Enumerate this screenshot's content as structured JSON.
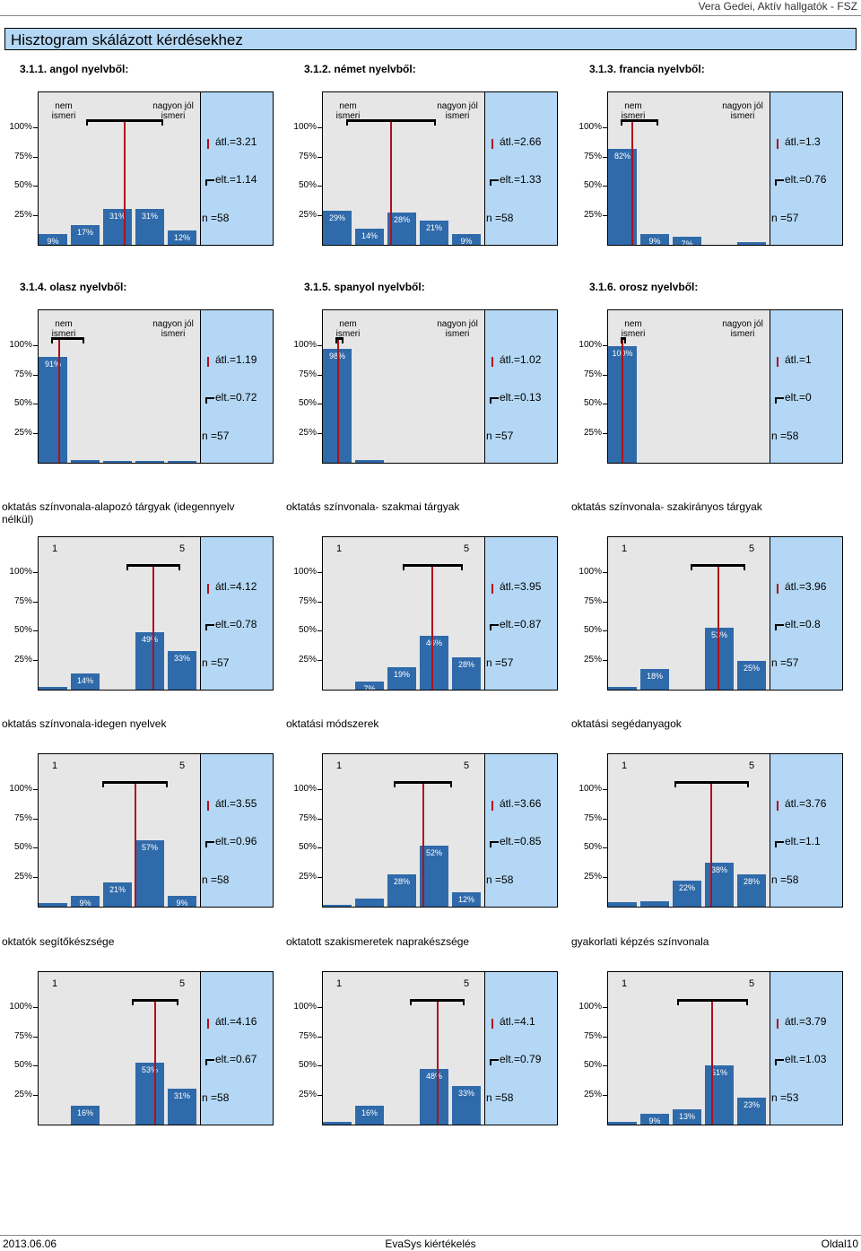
{
  "header": {
    "right": "Vera Gedei, Aktív hallgatók - FSZ"
  },
  "page_title": "Hisztogram skálázott kérdésekhez",
  "footer": {
    "date": "2013.06.06",
    "center": "EvaSys kiértékelés",
    "page": "Oldal10"
  },
  "y_ticks": [
    "100%",
    "75%",
    "50%",
    "25%"
  ],
  "labels": {
    "avg": "átl.=",
    "dev": "elt.=",
    "n": "n ="
  },
  "chart_data": [
    {
      "title": "3.1.1. angol nyelvből:",
      "bold": true,
      "left_label": "nem ismeri",
      "right_label": "nagyon jól ismeri",
      "type": "bar",
      "values": [
        9,
        17,
        31,
        31,
        12
      ],
      "labels": [
        "9%",
        "17%",
        "31%",
        "31%",
        "12%"
      ],
      "mean": 3.21,
      "dev": 1.14,
      "n": 58,
      "avg_text": "3.21",
      "dev_text": "1.14",
      "n_text": "58"
    },
    {
      "title": "3.1.2. német nyelvből:",
      "bold": true,
      "left_label": "nem ismeri",
      "right_label": "nagyon jól ismeri",
      "type": "bar",
      "values": [
        29,
        14,
        28,
        21,
        9
      ],
      "labels": [
        "29%",
        "14%",
        "28%",
        "21%",
        "9%"
      ],
      "mean": 2.66,
      "dev": 1.33,
      "n": 58,
      "avg_text": "2.66",
      "dev_text": "1.33",
      "n_text": "58"
    },
    {
      "title": "3.1.3. francia nyelvből:",
      "bold": true,
      "left_label": "nem ismeri",
      "right_label": "nagyon jól ismeri",
      "type": "bar",
      "values": [
        82,
        9,
        7,
        0,
        2
      ],
      "labels": [
        "82%",
        "9%",
        "7%",
        "",
        ""
      ],
      "mean": 1.3,
      "dev": 0.76,
      "n": 57,
      "avg_text": "1.3",
      "dev_text": "0.76",
      "n_text": "57"
    },
    {
      "title": "3.1.4. olasz nyelvből:",
      "bold": true,
      "left_label": "nem ismeri",
      "right_label": "nagyon jól ismeri",
      "type": "bar",
      "values": [
        91,
        2,
        1,
        1,
        1
      ],
      "labels": [
        "91%",
        "",
        "",
        "",
        ""
      ],
      "mean": 1.19,
      "dev": 0.72,
      "n": 57,
      "avg_text": "1.19",
      "dev_text": "0.72",
      "n_text": "57"
    },
    {
      "title": "3.1.5. spanyol nyelvből:",
      "bold": true,
      "left_label": "nem ismeri",
      "right_label": "nagyon jól ismeri",
      "type": "bar",
      "values": [
        98,
        2,
        0,
        0,
        0
      ],
      "labels": [
        "98%",
        "",
        "",
        "",
        ""
      ],
      "mean": 1.02,
      "dev": 0.13,
      "n": 57,
      "avg_text": "1.02",
      "dev_text": "0.13",
      "n_text": "57"
    },
    {
      "title": "3.1.6. orosz nyelvből:",
      "bold": true,
      "left_label": "nem ismeri",
      "right_label": "nagyon jól ismeri",
      "type": "bar",
      "values": [
        100,
        0,
        0,
        0,
        0
      ],
      "labels": [
        "100%",
        "",
        "",
        "",
        ""
      ],
      "mean": 1,
      "dev": 0,
      "n": 58,
      "avg_text": "1",
      "dev_text": "0",
      "n_text": "58"
    },
    {
      "title": "oktatás színvonala-alapozó tárgyak (idegennyelv nélkül)",
      "bold": false,
      "left_label": "1",
      "right_label": "5",
      "type": "bar",
      "values": [
        2,
        14,
        0,
        49,
        33
      ],
      "labels": [
        "",
        "14%",
        "",
        "49%",
        "33%"
      ],
      "mean": 4.12,
      "dev": 0.78,
      "n": 57,
      "avg_text": "4.12",
      "dev_text": "0.78",
      "n_text": "57"
    },
    {
      "title": "oktatás színvonala- szakmai tárgyak",
      "bold": false,
      "left_label": "1",
      "right_label": "5",
      "type": "bar",
      "values": [
        0,
        7,
        19,
        46,
        28
      ],
      "labels": [
        "",
        "7%",
        "19%",
        "46%",
        "28%"
      ],
      "mean": 3.95,
      "dev": 0.87,
      "n": 57,
      "avg_text": "3.95",
      "dev_text": "0.87",
      "n_text": "57"
    },
    {
      "title": "oktatás színvonala- szakirányos tárgyak",
      "bold": false,
      "left_label": "1",
      "right_label": "5",
      "type": "bar",
      "values": [
        2,
        18,
        0,
        53,
        25
      ],
      "labels": [
        "",
        "18%",
        "",
        "53%",
        "25%"
      ],
      "mean": 3.96,
      "dev": 0.8,
      "n": 57,
      "avg_text": "3.96",
      "dev_text": "0.8",
      "n_text": "57"
    },
    {
      "title": "oktatás színvonala-idegen nyelvek",
      "bold": false,
      "left_label": "1",
      "right_label": "5",
      "type": "bar",
      "values": [
        3,
        9,
        21,
        57,
        9
      ],
      "labels": [
        "",
        "9%",
        "21%",
        "57%",
        "9%"
      ],
      "mean": 3.55,
      "dev": 0.96,
      "n": 58,
      "avg_text": "3.55",
      "dev_text": "0.96",
      "n_text": "58"
    },
    {
      "title": "oktatási módszerek",
      "bold": false,
      "left_label": "1",
      "right_label": "5",
      "type": "bar",
      "values": [
        1,
        7,
        28,
        52,
        12
      ],
      "labels": [
        "",
        "",
        "28%",
        "52%",
        "12%"
      ],
      "mean": 3.66,
      "dev": 0.85,
      "n": 58,
      "avg_text": "3.66",
      "dev_text": "0.85",
      "n_text": "58"
    },
    {
      "title": "oktatási segédanyagok",
      "bold": false,
      "left_label": "1",
      "right_label": "5",
      "type": "bar",
      "values": [
        4,
        5,
        22,
        38,
        28
      ],
      "labels": [
        "",
        "",
        "22%",
        "38%",
        "28%"
      ],
      "mean": 3.76,
      "dev": 1.1,
      "n": 58,
      "avg_text": "3.76",
      "dev_text": "1.1",
      "n_text": "58"
    },
    {
      "title": "oktatók segítőkészsége",
      "bold": false,
      "left_label": "1",
      "right_label": "5",
      "type": "bar",
      "values": [
        0,
        16,
        0,
        53,
        31
      ],
      "labels": [
        "",
        "16%",
        "",
        "53%",
        "31%"
      ],
      "mean": 4.16,
      "dev": 0.67,
      "n": 58,
      "avg_text": "4.16",
      "dev_text": "0.67",
      "n_text": "58"
    },
    {
      "title": "oktatott szakismeretek naprakészsége",
      "bold": false,
      "left_label": "1",
      "right_label": "5",
      "type": "bar",
      "values": [
        2,
        16,
        0,
        48,
        33
      ],
      "labels": [
        "",
        "16%",
        "",
        "48%",
        "33%"
      ],
      "mean": 4.1,
      "dev": 0.79,
      "n": 58,
      "avg_text": "4.1",
      "dev_text": "0.79",
      "n_text": "58"
    },
    {
      "title": "gyakorlati képzés színvonala",
      "bold": false,
      "left_label": "1",
      "right_label": "5",
      "type": "bar",
      "values": [
        2,
        9,
        13,
        51,
        23
      ],
      "labels": [
        "",
        "9%",
        "13%",
        "51%",
        "23%"
      ],
      "mean": 3.79,
      "dev": 1.03,
      "n": 53,
      "avg_text": "3.79",
      "dev_text": "1.03",
      "n_text": "53"
    }
  ]
}
